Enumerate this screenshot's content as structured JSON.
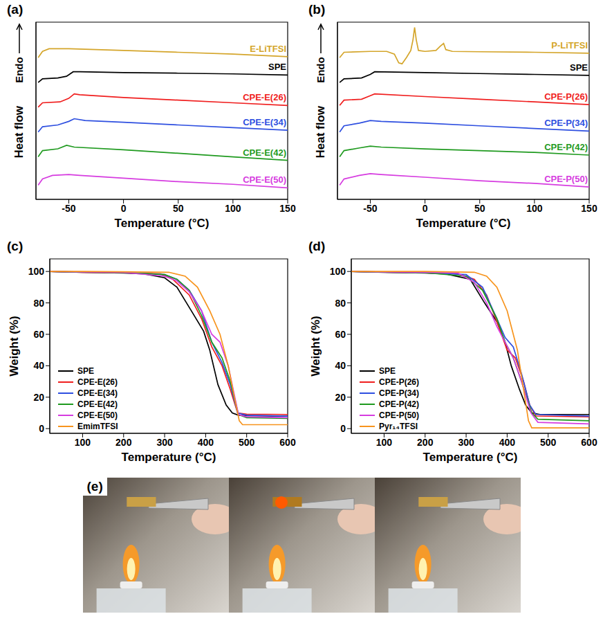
{
  "chart_data": [
    {
      "type": "line",
      "panel_label": "(a)",
      "xlabel": "Temperature (°C)",
      "ylabel": "Heat flow",
      "annotations": [
        "Endo"
      ],
      "xlim": [
        -80,
        150
      ],
      "xticks": [
        -50,
        0,
        50,
        100,
        150
      ],
      "ylim": [
        0,
        100
      ],
      "tick_labels": "x",
      "grid": false,
      "series": [
        {
          "name": "E-LiTFSI",
          "color": "#d4a52a",
          "x": [
            -78,
            -74,
            -68,
            -50,
            0,
            50,
            100,
            150
          ],
          "values": [
            80,
            83.5,
            85,
            85,
            84,
            83,
            82,
            80.5
          ]
        },
        {
          "name": "SPE",
          "color": "#000000",
          "x": [
            -78,
            -74,
            -60,
            -52,
            -46,
            -40,
            0,
            50,
            100,
            150
          ],
          "values": [
            66,
            68,
            68.5,
            69.5,
            72,
            72,
            71.5,
            71.2,
            70.8,
            70.2
          ]
        },
        {
          "name": "CPE-E(26)",
          "color": "#f01e1e",
          "x": [
            -78,
            -74,
            -58,
            -50,
            -45,
            -40,
            0,
            50,
            100,
            150
          ],
          "values": [
            52,
            54.5,
            55,
            57,
            59.5,
            59,
            57.5,
            56,
            54.5,
            53
          ]
        },
        {
          "name": "CPE-E(34)",
          "color": "#2e4fe0",
          "x": [
            -78,
            -74,
            -60,
            -50,
            -45,
            -35,
            0,
            50,
            100,
            150
          ],
          "values": [
            38,
            41,
            42,
            44,
            45.5,
            44.5,
            43.5,
            42,
            40.5,
            39
          ]
        },
        {
          "name": "CPE-E(42)",
          "color": "#1f9a1f",
          "x": [
            -78,
            -74,
            -60,
            -52,
            -45,
            0,
            50,
            100,
            150
          ],
          "values": [
            24,
            27.5,
            28.5,
            30.5,
            29.5,
            28,
            26,
            24,
            22
          ]
        },
        {
          "name": "CPE-E(50)",
          "color": "#d63ce0",
          "x": [
            -78,
            -74,
            -65,
            -50,
            -40,
            0,
            50,
            100,
            150
          ],
          "values": [
            8,
            11.5,
            13.5,
            14,
            13.5,
            12,
            10,
            8.5,
            6.5
          ]
        }
      ]
    },
    {
      "type": "line",
      "panel_label": "(b)",
      "xlabel": "Temperature (°C)",
      "ylabel": "Heat flow",
      "annotations": [
        "Endo"
      ],
      "xlim": [
        -80,
        150
      ],
      "xticks": [
        -50,
        0,
        50,
        100,
        150
      ],
      "ylim": [
        0,
        100
      ],
      "tick_labels": "x",
      "grid": false,
      "series": [
        {
          "name": "P-LiTFSI",
          "color": "#d4a52a",
          "x": [
            -78,
            -74,
            -50,
            -35,
            -28,
            -24,
            -21,
            -17,
            -13,
            -11,
            -9.5,
            -8,
            -6,
            0,
            10,
            14,
            17,
            19,
            25,
            50,
            100,
            150
          ],
          "values": [
            80,
            83,
            83.5,
            83.5,
            82,
            77,
            76.5,
            80,
            84,
            90,
            97,
            90,
            84,
            83.5,
            84,
            86.5,
            88,
            84.5,
            83.5,
            83.3,
            83,
            82.5
          ]
        },
        {
          "name": "SPE",
          "color": "#000000",
          "x": [
            -78,
            -74,
            -58,
            -50,
            -46,
            0,
            50,
            100,
            150
          ],
          "values": [
            66,
            68,
            68.5,
            70.5,
            72,
            71.5,
            71,
            70.5,
            70
          ]
        },
        {
          "name": "CPE-P(26)",
          "color": "#f01e1e",
          "x": [
            -78,
            -74,
            -58,
            -50,
            -46,
            0,
            50,
            100,
            150
          ],
          "values": [
            53,
            56,
            56.5,
            58.5,
            59.5,
            58,
            56.5,
            55,
            53.5
          ]
        },
        {
          "name": "CPE-P(34)",
          "color": "#2e4fe0",
          "x": [
            -78,
            -74,
            -60,
            -50,
            -40,
            0,
            50,
            100,
            150
          ],
          "values": [
            38,
            41.5,
            43,
            44.5,
            44,
            43,
            41.5,
            40,
            38.5
          ]
        },
        {
          "name": "CPE-P(42)",
          "color": "#1f9a1f",
          "x": [
            -78,
            -74,
            -60,
            -50,
            -40,
            0,
            50,
            100,
            150
          ],
          "values": [
            24,
            27.5,
            29,
            30,
            29.5,
            28.5,
            27.5,
            26.5,
            25
          ]
        },
        {
          "name": "CPE-P(50)",
          "color": "#d63ce0",
          "x": [
            -78,
            -74,
            -60,
            -50,
            -40,
            0,
            50,
            100,
            150
          ],
          "values": [
            8,
            11.5,
            13.5,
            14.5,
            14,
            12.5,
            10.5,
            9,
            7
          ]
        }
      ]
    },
    {
      "type": "line",
      "panel_label": "(c)",
      "xlabel": "Temperature (°C)",
      "ylabel": "Weight (%)",
      "xlim": [
        20,
        600
      ],
      "xticks": [
        100,
        200,
        300,
        400,
        500,
        600
      ],
      "ylim": [
        -3,
        108
      ],
      "yticks": [
        0,
        20,
        40,
        60,
        80,
        100
      ],
      "grid": false,
      "legend": "lower left",
      "series": [
        {
          "name": "SPE",
          "color": "#000000",
          "x": [
            20,
            100,
            200,
            250,
            300,
            330,
            365,
            395,
            410,
            430,
            450,
            465,
            480,
            500,
            600
          ],
          "values": [
            100,
            99.5,
            99,
            98.5,
            96,
            90,
            75,
            62,
            50,
            28,
            15,
            10,
            8.5,
            8.3,
            8
          ]
        },
        {
          "name": "CPE-E(26)",
          "color": "#f01e1e",
          "x": [
            20,
            100,
            200,
            290,
            320,
            360,
            390,
            415,
            440,
            460,
            478,
            500,
            600
          ],
          "values": [
            100,
            99.5,
            99.2,
            98.5,
            95,
            85,
            70,
            52,
            40,
            25,
            10,
            9.2,
            9
          ]
        },
        {
          "name": "CPE-E(34)",
          "color": "#2e4fe0",
          "x": [
            20,
            100,
            200,
            300,
            330,
            360,
            390,
            415,
            440,
            460,
            478,
            500,
            600
          ],
          "values": [
            100,
            99.6,
            99.3,
            98,
            95,
            88,
            75,
            55,
            42,
            28,
            10,
            8.5,
            8
          ]
        },
        {
          "name": "CPE-E(42)",
          "color": "#1f9a1f",
          "x": [
            20,
            100,
            200,
            300,
            330,
            360,
            390,
            415,
            440,
            460,
            480,
            500,
            600
          ],
          "values": [
            100,
            99.6,
            99.3,
            98,
            95,
            88,
            72,
            55,
            45,
            30,
            9,
            7,
            6.5
          ]
        },
        {
          "name": "CPE-E(50)",
          "color": "#d63ce0",
          "x": [
            20,
            100,
            200,
            300,
            330,
            360,
            390,
            415,
            435,
            455,
            480,
            500,
            600
          ],
          "values": [
            100,
            99.7,
            99.4,
            97,
            94,
            87,
            75,
            60,
            55,
            40,
            9,
            7.5,
            7
          ]
        },
        {
          "name": "EmimTFSI",
          "color": "#f7941d",
          "x": [
            20,
            100,
            200,
            310,
            350,
            380,
            410,
            435,
            455,
            470,
            482,
            490,
            600
          ],
          "values": [
            100,
            100,
            99.8,
            99.5,
            97,
            90,
            75,
            60,
            40,
            20,
            5,
            2.5,
            2.5
          ]
        }
      ]
    },
    {
      "type": "line",
      "panel_label": "(d)",
      "xlabel": "Temperature (°C)",
      "ylabel": "Weight (%)",
      "xlim": [
        20,
        600
      ],
      "xticks": [
        100,
        200,
        300,
        400,
        500,
        600
      ],
      "ylim": [
        -3,
        108
      ],
      "yticks": [
        0,
        20,
        40,
        60,
        80,
        100
      ],
      "grid": false,
      "legend": "lower left",
      "series": [
        {
          "name": "SPE",
          "color": "#000000",
          "x": [
            20,
            100,
            200,
            250,
            310,
            345,
            375,
            395,
            410,
            430,
            445,
            460,
            480,
            600
          ],
          "values": [
            100,
            99.5,
            99,
            98.5,
            95,
            80,
            68,
            55,
            40,
            25,
            15,
            10,
            9,
            9
          ]
        },
        {
          "name": "CPE-P(26)",
          "color": "#f01e1e",
          "x": [
            20,
            100,
            200,
            280,
            320,
            350,
            375,
            400,
            420,
            440,
            455,
            470,
            600
          ],
          "values": [
            100,
            99.6,
            99.2,
            98.5,
            95,
            85,
            68,
            50,
            45,
            30,
            15,
            8,
            7.5
          ]
        },
        {
          "name": "CPE-P(34)",
          "color": "#2e4fe0",
          "x": [
            20,
            100,
            200,
            300,
            340,
            375,
            395,
            415,
            435,
            455,
            470,
            600
          ],
          "values": [
            100,
            99.6,
            99.2,
            98,
            90,
            70,
            58,
            52,
            35,
            15,
            9,
            8
          ]
        },
        {
          "name": "CPE-P(42)",
          "color": "#1f9a1f",
          "x": [
            20,
            100,
            200,
            300,
            340,
            375,
            395,
            415,
            435,
            460,
            475,
            600
          ],
          "values": [
            100,
            99.6,
            99.2,
            97,
            88,
            70,
            55,
            45,
            30,
            10,
            6,
            5
          ]
        },
        {
          "name": "CPE-P(50)",
          "color": "#d63ce0",
          "x": [
            20,
            100,
            200,
            280,
            320,
            350,
            375,
            395,
            415,
            435,
            458,
            475,
            600
          ],
          "values": [
            100,
            99.7,
            99.4,
            99,
            93,
            80,
            65,
            55,
            45,
            30,
            10,
            4,
            3
          ]
        },
        {
          "name": "Pyr₁₄TFSI",
          "color": "#f7941d",
          "x": [
            20,
            100,
            200,
            320,
            350,
            375,
            400,
            425,
            440,
            452,
            460,
            600
          ],
          "values": [
            100,
            100,
            100,
            99.5,
            97,
            90,
            75,
            50,
            25,
            5,
            0.5,
            0.5
          ]
        }
      ]
    }
  ],
  "image": {
    "panel_label": "(e)",
    "frames": 3
  }
}
